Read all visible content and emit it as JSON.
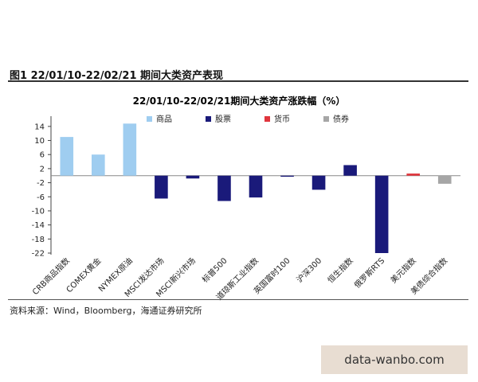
{
  "header": {
    "figure_label": "图1  22/01/10-22/02/21 期间大类资产表现"
  },
  "footer": {
    "source": "资料来源：Wind，Bloomberg，海通证券研究所"
  },
  "watermark": "data-wanbo.com",
  "chart_data": {
    "type": "bar",
    "title": "22/01/10-22/02/21期间大类资产涨跌幅（%）",
    "categories": [
      "CRB商品指数",
      "COMEX黄金",
      "NYMEX原油",
      "MSCI发达市场",
      "MSCI新兴市场",
      "标普500",
      "道琼斯工业指数",
      "英国富时100",
      "沪深300",
      "恒生指数",
      "俄罗斯RTS",
      "美元指数",
      "美债综合指数"
    ],
    "values": [
      11,
      6,
      14.8,
      -6.5,
      -0.8,
      -7.2,
      -6.2,
      -0.3,
      -4,
      3,
      -22,
      0.6,
      -2.3
    ],
    "groups": [
      "商品",
      "商品",
      "商品",
      "股票",
      "股票",
      "股票",
      "股票",
      "股票",
      "股票",
      "股票",
      "股票",
      "货币",
      "债券"
    ],
    "legend": [
      {
        "name": "商品",
        "color": "#9fcdf0"
      },
      {
        "name": "股票",
        "color": "#1a1a7a"
      },
      {
        "name": "货币",
        "color": "#e0353d"
      },
      {
        "name": "债券",
        "color": "#a6a6a6"
      }
    ],
    "yticks": [
      14,
      10,
      6,
      2,
      -2,
      -6,
      -10,
      -14,
      -18,
      -22
    ],
    "yticklabels": [
      "14",
      "10",
      "6",
      "2",
      "-2",
      "-6",
      "-10",
      "-14",
      "-18",
      "-22"
    ],
    "ylim": [
      -22,
      16
    ],
    "xlabel": "",
    "ylabel": "",
    "legend_position": "top"
  }
}
